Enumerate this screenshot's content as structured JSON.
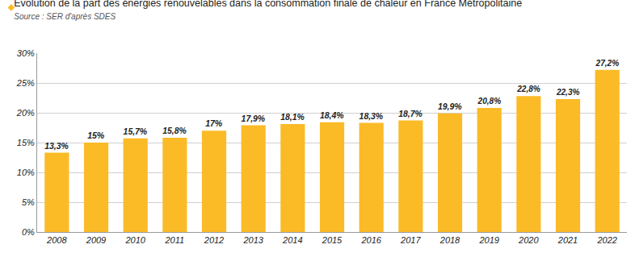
{
  "chart_data": {
    "type": "bar",
    "title": "Évolution de la part des énergies renouvelables dans la consommation finale de chaleur en France Métropolitaine",
    "subtitle": "Source : SER d'après SDES",
    "categories": [
      "2008",
      "2009",
      "2010",
      "2011",
      "2012",
      "2013",
      "2014",
      "2015",
      "2016",
      "2017",
      "2018",
      "2019",
      "2020",
      "2021",
      "2022"
    ],
    "values": [
      13.3,
      15,
      15.7,
      15.8,
      17,
      17.9,
      18.1,
      18.4,
      18.3,
      18.7,
      19.9,
      20.8,
      22.8,
      22.3,
      27.2
    ],
    "value_labels": [
      "13,3%",
      "15%",
      "15,7%",
      "15,8%",
      "17%",
      "17,9%",
      "18,1%",
      "18,4%",
      "18,3%",
      "18,7%",
      "19,9%",
      "20,8%",
      "22,8%",
      "22,3%",
      "27,2%"
    ],
    "color": "#fbbb27",
    "ylim": [
      0,
      30
    ],
    "yticks": [
      {
        "value": 0,
        "label": "0%"
      },
      {
        "value": 5,
        "label": "5%"
      },
      {
        "value": 10,
        "label": "10%"
      },
      {
        "value": 15,
        "label": "15%"
      },
      {
        "value": 20,
        "label": "20%"
      },
      {
        "value": 25,
        "label": "25%"
      },
      {
        "value": 30,
        "label": "30%"
      }
    ],
    "grid": true,
    "data_labels": true
  }
}
